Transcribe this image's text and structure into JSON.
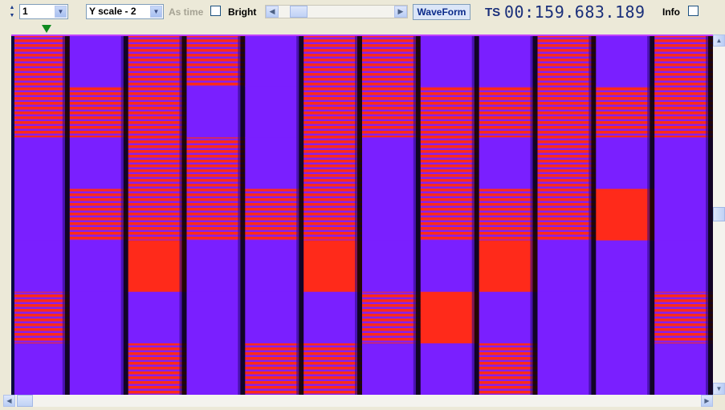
{
  "toolbar": {
    "channel_value": "1",
    "yscale_value": "Y scale - 2",
    "as_time_label": "As time",
    "bright_label": "Bright",
    "waveform_label": "WaveForm",
    "ts_label": "TS",
    "ts_value": "00:159.683.189",
    "info_label": "Info"
  },
  "icons": {
    "spin_up": "spin-up-icon",
    "spin_down": "spin-down-icon",
    "drop": "chevron-down-icon",
    "left": "arrow-left-icon",
    "right": "arrow-right-icon",
    "marker": "triangle-marker-icon"
  },
  "colors": {
    "red": "#ff2a1a",
    "purple": "#7a1fff",
    "black": "#000000"
  }
}
